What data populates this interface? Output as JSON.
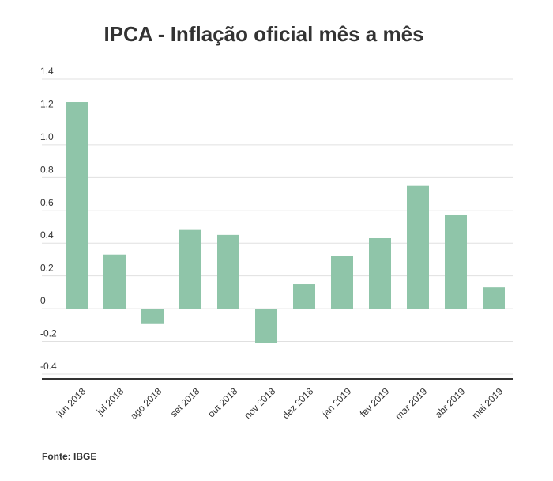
{
  "chart_data": {
    "type": "bar",
    "title": "IPCA - Inflação oficial mês a mês",
    "xlabel": "",
    "ylabel": "",
    "categories": [
      "jun 2018",
      "jul 2018",
      "ago 2018",
      "set 2018",
      "out 2018",
      "nov 2018",
      "dez 2018",
      "jan 2019",
      "fev 2019",
      "mar 2019",
      "abr 2019",
      "mai 2019"
    ],
    "values": [
      1.26,
      0.33,
      -0.09,
      0.48,
      0.45,
      -0.21,
      0.15,
      0.32,
      0.43,
      0.75,
      0.57,
      0.13
    ],
    "yticks": [
      "1.4",
      "1.2",
      "1.0",
      "0.8",
      "0.6",
      "0.4",
      "0.2",
      "0",
      "-0.2",
      "-0.4"
    ],
    "ylim": [
      -0.4,
      1.4
    ],
    "grid": true,
    "bar_color": "#8fc5a9",
    "source": "Fonte: IBGE"
  }
}
